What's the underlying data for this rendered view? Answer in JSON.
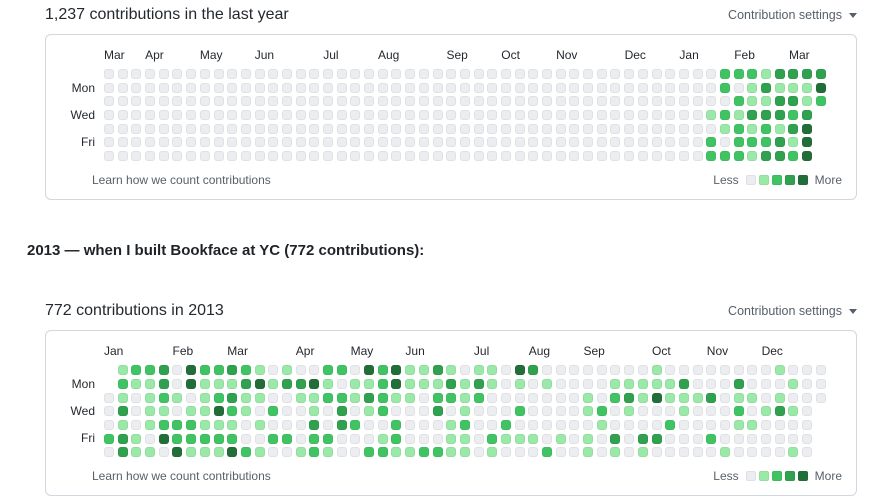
{
  "page": {
    "heading_2013": "2013 — when I built Bookface at YC (772 contributions):"
  },
  "legend_colors": [
    "#ebedf0",
    "#9be9a8",
    "#40c463",
    "#30a14e",
    "#216e39"
  ],
  "charts": [
    {
      "title": "1,237 contributions in the last year",
      "settings_label": "Contribution settings",
      "day_labels": [
        "Mon",
        "Wed",
        "Fri"
      ],
      "footer_link": "Learn how we count contributions",
      "legend_less": "Less",
      "legend_more": "More",
      "months": [
        {
          "label": "Mar",
          "col": 0
        },
        {
          "label": "Apr",
          "col": 3
        },
        {
          "label": "May",
          "col": 7
        },
        {
          "label": "Jun",
          "col": 11
        },
        {
          "label": "Jul",
          "col": 16
        },
        {
          "label": "Aug",
          "col": 20
        },
        {
          "label": "Sep",
          "col": 25
        },
        {
          "label": "Oct",
          "col": 29
        },
        {
          "label": "Nov",
          "col": 33
        },
        {
          "label": "Dec",
          "col": 38
        },
        {
          "label": "Jan",
          "col": 42
        },
        {
          "label": "Feb",
          "col": 46
        },
        {
          "label": "Mar",
          "col": 50
        }
      ],
      "weeks": [
        "0000000",
        "0000000",
        "0000000",
        "0000000",
        "0000000",
        "0000000",
        "0000000",
        "0000000",
        "0000000",
        "0000000",
        "0000000",
        "0000000",
        "0000000",
        "0000000",
        "0000000",
        "0000000",
        "0000000",
        "0000000",
        "0000000",
        "0000000",
        "0000000",
        "0000000",
        "0000000",
        "0000000",
        "0000000",
        "0000000",
        "0000000",
        "0000000",
        "0000000",
        "0000000",
        "0000000",
        "0000000",
        "0000000",
        "0000000",
        "0000000",
        "0000000",
        "0000000",
        "0000000",
        "0000000",
        "0000000",
        "0000000",
        "0000000",
        "0000000",
        "0000000",
        "0001022",
        "2202102",
        "2021222",
        "2113121",
        "1313223",
        "3133133",
        "3132312",
        "3113444",
        "342----"
      ]
    },
    {
      "title": "772 contributions in 2013",
      "settings_label": "Contribution settings",
      "day_labels": [
        "Mon",
        "Wed",
        "Fri"
      ],
      "footer_link": "Learn how we count contributions",
      "legend_less": "Less",
      "legend_more": "More",
      "months": [
        {
          "label": "Jan",
          "col": 0
        },
        {
          "label": "Feb",
          "col": 5
        },
        {
          "label": "Mar",
          "col": 9
        },
        {
          "label": "Apr",
          "col": 14
        },
        {
          "label": "May",
          "col": 18
        },
        {
          "label": "Jun",
          "col": 22
        },
        {
          "label": "Jul",
          "col": 27
        },
        {
          "label": "Aug",
          "col": 31
        },
        {
          "label": "Sep",
          "col": 35
        },
        {
          "label": "Oct",
          "col": 40
        },
        {
          "label": "Nov",
          "col": 44
        },
        {
          "label": "Dec",
          "col": 48
        }
      ],
      "weeks": [
        "--00020",
        "1213133",
        "2100011",
        "2111101",
        "3321240",
        "0010224",
        "4401221",
        "2111121",
        "2124121",
        "3132124",
        "2311002",
        "1410101",
        "0102020",
        "1300020",
        "0310001",
        "0411322",
        "2120021",
        "2023300",
        "0110200",
        "4131002",
        "2222012",
        "4410221",
        "1110001",
        "1100002",
        "3123002",
        "1320111",
        "0111211",
        "1320000",
        "1100021",
        "0000210",
        "4102010",
        "3000010",
        "0100002",
        "0000010",
        "0000000",
        "0011011",
        "0002100",
        "0120031",
        "0131000",
        "0110031",
        "1140030",
        "0110200",
        "0311000",
        "0010000",
        "0030020",
        "0000001",
        "0312100",
        "0010100",
        "0001000",
        "1013000",
        "0101001",
        "0000000",
        "000----"
      ]
    }
  ]
}
